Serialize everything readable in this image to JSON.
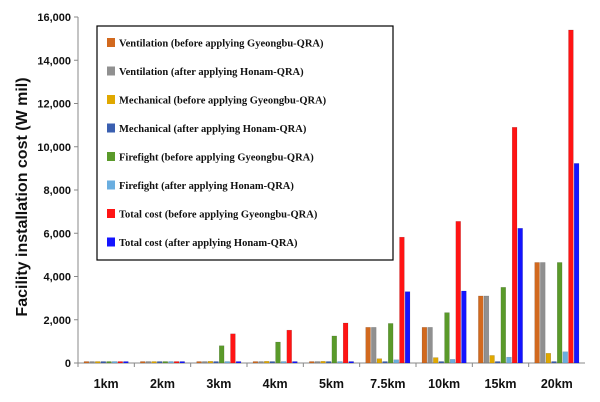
{
  "chart_data": {
    "type": "bar",
    "title": "",
    "xlabel": "",
    "ylabel": "Facility installation cost (W mil)",
    "ylim": [
      0,
      16000
    ],
    "yticks": [
      0,
      2000,
      4000,
      6000,
      8000,
      10000,
      12000,
      14000,
      16000
    ],
    "ytick_labels": [
      "0",
      "2,000",
      "4,000",
      "6,000",
      "8,000",
      "10,000",
      "12,000",
      "14,000",
      "16,000"
    ],
    "grid": false,
    "legend_position": "top-left inside plot",
    "categories": [
      "1km",
      "2km",
      "3km",
      "4km",
      "5km",
      "7.5km",
      "10km",
      "15km",
      "20km"
    ],
    "series": [
      {
        "name": "Ventilation (before applying Gyeongbu-QRA)",
        "color": "#d2691e",
        "values": [
          0,
          0,
          0,
          0,
          0,
          1650,
          1650,
          3100,
          4650
        ]
      },
      {
        "name": "Ventilation (after applying Honam-QRA)",
        "color": "#909090",
        "values": [
          0,
          0,
          0,
          0,
          0,
          1650,
          1650,
          3100,
          4650
        ]
      },
      {
        "name": "Mechanical (before applying Gyeongbu-QRA)",
        "color": "#e0a800",
        "values": [
          0,
          0,
          80,
          80,
          80,
          200,
          250,
          350,
          450
        ]
      },
      {
        "name": "Mechanical (after applying Honam-QRA)",
        "color": "#3a5fb0",
        "values": [
          0,
          0,
          0,
          0,
          0,
          0,
          0,
          0,
          0
        ]
      },
      {
        "name": "Firefight (before applying Gyeongbu-QRA)",
        "color": "#5a9a2a",
        "values": [
          0,
          0,
          800,
          970,
          1250,
          1830,
          2330,
          3500,
          4650
        ]
      },
      {
        "name": "Firefight (after applying Honam-QRA)",
        "color": "#6aaee0",
        "values": [
          0,
          0,
          0,
          0,
          0,
          150,
          170,
          270,
          520
        ]
      },
      {
        "name": "Total cost (before applying Gyeongbu-QRA)",
        "color": "#ff1414",
        "values": [
          0,
          0,
          1350,
          1520,
          1850,
          5820,
          6550,
          10900,
          15400
        ]
      },
      {
        "name": "Total cost (after applying Honam-QRA)",
        "color": "#1414ff",
        "values": [
          0,
          0,
          0,
          0,
          0,
          3300,
          3330,
          6230,
          9230
        ]
      }
    ]
  }
}
